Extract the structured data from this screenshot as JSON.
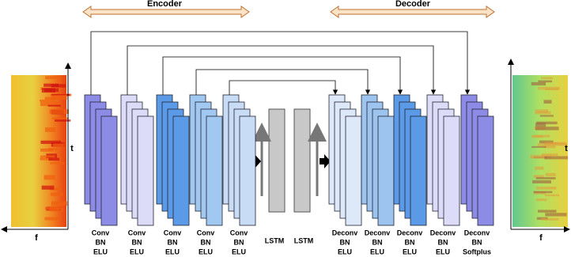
{
  "header": {
    "encoder": "Encoder",
    "decoder": "Decoder"
  },
  "input": {
    "t": "t",
    "f": "f"
  },
  "output": {
    "t": "t",
    "f": "f"
  },
  "blocks": [
    {
      "lines": [
        "Conv",
        "BN",
        "ELU"
      ]
    },
    {
      "lines": [
        "Conv",
        "BN",
        "ELU"
      ]
    },
    {
      "lines": [
        "Conv",
        "BN",
        "ELU"
      ]
    },
    {
      "lines": [
        "Conv",
        "BN",
        "ELU"
      ]
    },
    {
      "lines": [
        "Conv",
        "BN",
        "ELU"
      ]
    },
    {
      "lines": [
        "Deconv",
        "BN",
        "ELU"
      ]
    },
    {
      "lines": [
        "Deconv",
        "BN",
        "ELU"
      ]
    },
    {
      "lines": [
        "Deconv",
        "BN",
        "ELU"
      ]
    },
    {
      "lines": [
        "Deconv",
        "BN",
        "ELU"
      ]
    },
    {
      "lines": [
        "Deconv",
        "BN",
        "Softplus"
      ]
    }
  ],
  "lstm": [
    "LSTM",
    "LSTM"
  ]
}
